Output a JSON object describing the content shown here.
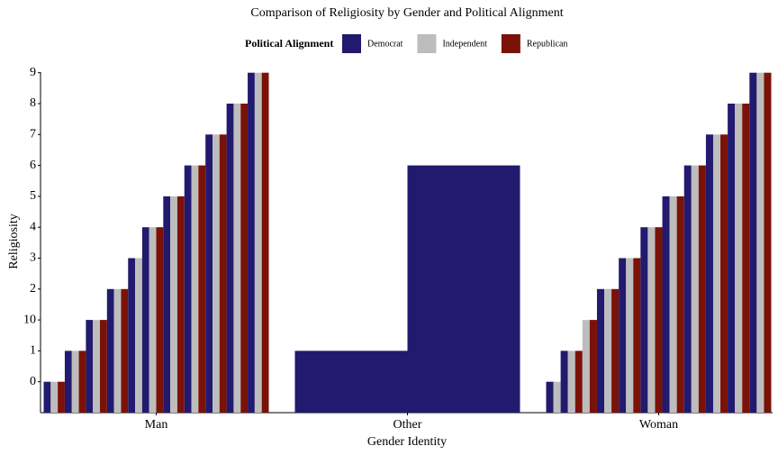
{
  "chart_data": {
    "type": "bar",
    "title": "Comparison of Religiosity by Gender and Political Alignment",
    "x_label": "Gender Identity",
    "y_label": "Religiosity",
    "legend_title": "Political Alignment",
    "legend_position": "top",
    "categories": [
      "Man",
      "Other",
      "Woman"
    ],
    "series": [
      {
        "name": "Democrat",
        "color": "#221a6e",
        "values": [
          [
            1,
            2,
            3,
            4,
            5,
            6,
            7,
            8,
            9,
            10,
            11
          ],
          [
            null,
            2,
            null,
            null,
            null,
            null,
            null,
            8,
            null,
            null,
            null
          ],
          [
            1,
            2,
            null,
            4,
            5,
            6,
            7,
            8,
            9,
            10,
            11
          ]
        ]
      },
      {
        "name": "Independent",
        "color": "#bdbdbd",
        "values": [
          [
            1,
            2,
            3,
            4,
            5,
            6,
            7,
            8,
            9,
            10,
            11
          ],
          [
            null,
            null,
            null,
            null,
            null,
            null,
            null,
            null,
            null,
            null,
            null
          ],
          [
            1,
            2,
            3,
            4,
            5,
            6,
            7,
            8,
            9,
            10,
            11
          ]
        ]
      },
      {
        "name": "Republican",
        "color": "#7a1208",
        "values": [
          [
            1,
            2,
            3,
            4,
            null,
            6,
            7,
            8,
            9,
            10,
            11
          ],
          [
            null,
            null,
            null,
            null,
            null,
            null,
            null,
            null,
            null,
            null,
            null
          ],
          [
            null,
            2,
            3,
            4,
            5,
            6,
            7,
            8,
            9,
            10,
            11
          ]
        ]
      }
    ],
    "ylim": [
      0,
      11
    ],
    "yticks": [
      {
        "value": 1,
        "label": "0"
      },
      {
        "value": 2,
        "label": "1"
      },
      {
        "value": 3,
        "label": "10"
      },
      {
        "value": 4,
        "label": "2"
      },
      {
        "value": 5,
        "label": "3"
      },
      {
        "value": 6,
        "label": "4"
      },
      {
        "value": 7,
        "label": "5"
      },
      {
        "value": 8,
        "label": "6"
      },
      {
        "value": 9,
        "label": "7"
      },
      {
        "value": 10,
        "label": "8"
      },
      {
        "value": 11,
        "label": "9"
      }
    ],
    "grid": false
  }
}
